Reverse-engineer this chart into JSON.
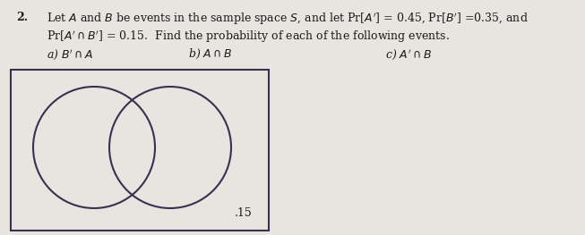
{
  "problem_number": "2.",
  "bg_color": "#e8e5e0",
  "text_color": "#1a1a1a",
  "circle_color": "#3a3050",
  "rect_color": "#3a3050",
  "fontsize_main": 9.0,
  "fontsize_label": 9.0,
  "venn_label": ".15",
  "line1": "Let $A$ and $B$ be events in the sample space $S$, and let Pr[$A'$] = 0.45, Pr[$B'$] =0.35, and",
  "line2": "Pr[$A' \\cap B'$] = 0.15.  Find the probability of each of the following events.",
  "line3a": "a) $B' \\cap A$",
  "line3b": "b) $A \\cap B$",
  "line3c": "c) $A' \\cap B$"
}
